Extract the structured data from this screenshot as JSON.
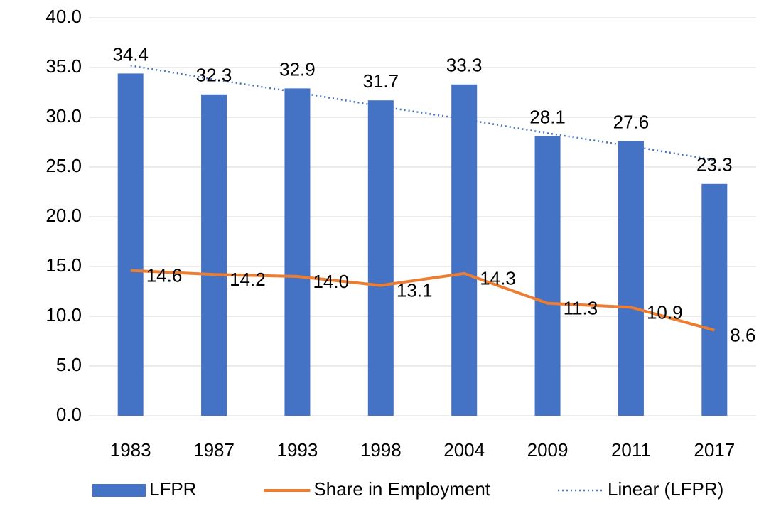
{
  "chart_data": {
    "type": "bar",
    "categories": [
      "1983",
      "1987",
      "1993",
      "1998",
      "2004",
      "2009",
      "2011",
      "2017"
    ],
    "series": [
      {
        "name": "LFPR",
        "type": "bar",
        "color": "#4472c4",
        "values": [
          34.4,
          32.3,
          32.9,
          31.7,
          33.3,
          28.1,
          27.6,
          23.3
        ],
        "value_labels": [
          "34.4",
          "32.3",
          "32.9",
          "31.7",
          "33.3",
          "28.1",
          "27.6",
          "23.3"
        ]
      },
      {
        "name": "Share in Employment",
        "type": "line",
        "color": "#ed7d31",
        "values": [
          14.6,
          14.2,
          14.0,
          13.1,
          14.3,
          11.3,
          10.9,
          8.6
        ],
        "value_labels": [
          "14.6",
          "14.2",
          "14.0",
          "13.1",
          "14.3",
          "11.3",
          "10.9",
          "8.6"
        ]
      },
      {
        "name": "Linear (LFPR)",
        "type": "trendline",
        "color": "#4472c4",
        "values": [
          35.2,
          33.8,
          32.5,
          31.1,
          29.8,
          28.4,
          27.1,
          25.7
        ]
      }
    ],
    "ylim": [
      0,
      40
    ],
    "yticks": [
      {
        "value": 0,
        "label": "0.0"
      },
      {
        "value": 5,
        "label": "5.0"
      },
      {
        "value": 10,
        "label": "10.0"
      },
      {
        "value": 15,
        "label": "15.0"
      },
      {
        "value": 20,
        "label": "20.0"
      },
      {
        "value": 25,
        "label": "25.0"
      },
      {
        "value": 30,
        "label": "30.0"
      },
      {
        "value": 35,
        "label": "35.0"
      },
      {
        "value": 40,
        "label": "40.0"
      }
    ],
    "grid": true,
    "legend": "bottom"
  }
}
